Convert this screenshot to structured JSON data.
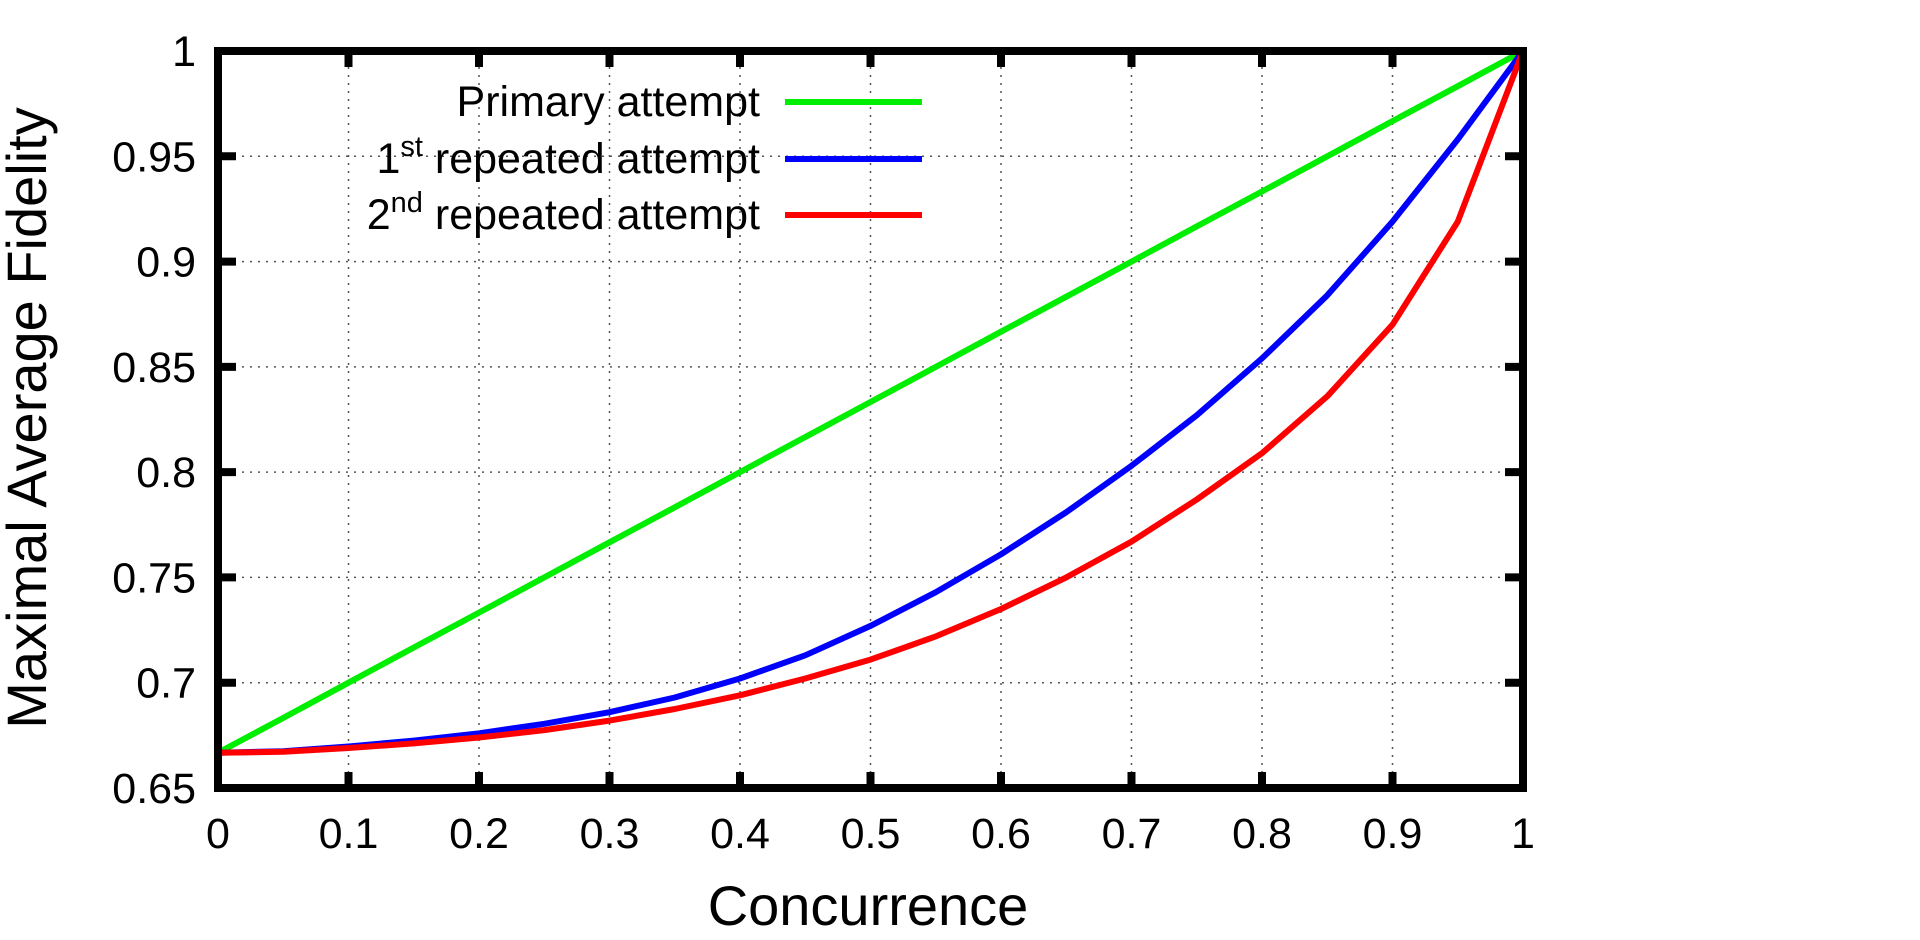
{
  "chart_data": {
    "type": "line",
    "title": "",
    "xlabel": "Concurrence",
    "ylabel": "Maximal Average Fidelity",
    "xlim": [
      0,
      1
    ],
    "ylim": [
      0.65,
      1
    ],
    "grid": true,
    "legend_position": "top-left",
    "xticks": [
      "0",
      "0.1",
      "0.2",
      "0.3",
      "0.4",
      "0.5",
      "0.6",
      "0.7",
      "0.8",
      "0.9",
      "1"
    ],
    "yticks": [
      "0.65",
      "0.7",
      "0.75",
      "0.8",
      "0.85",
      "0.9",
      "0.95",
      "1"
    ],
    "x": [
      0,
      0.05,
      0.1,
      0.15,
      0.2,
      0.25,
      0.3,
      0.35,
      0.4,
      0.45,
      0.5,
      0.55,
      0.6,
      0.65,
      0.7,
      0.75,
      0.8,
      0.85,
      0.9,
      0.95,
      1
    ],
    "series": [
      {
        "name": "Primary attempt",
        "legend_main": "Primary attempt",
        "legend_prefix": "",
        "legend_sup": "",
        "color": "#00ee00",
        "values": [
          0.6667,
          0.6833,
          0.7,
          0.7167,
          0.7333,
          0.75,
          0.7667,
          0.7833,
          0.8,
          0.8167,
          0.8333,
          0.85,
          0.8667,
          0.8833,
          0.9,
          0.9167,
          0.9333,
          0.95,
          0.9667,
          0.9833,
          1.0
        ]
      },
      {
        "name": "1st repeated attempt",
        "legend_main": " repeated attempt",
        "legend_prefix": "1",
        "legend_sup": "st",
        "color": "#0000ff",
        "values": [
          0.6667,
          0.6675,
          0.6697,
          0.6725,
          0.676,
          0.6805,
          0.686,
          0.693,
          0.702,
          0.713,
          0.727,
          0.743,
          0.761,
          0.781,
          0.803,
          0.827,
          0.854,
          0.884,
          0.919,
          0.958,
          1.0
        ]
      },
      {
        "name": "2nd repeated attempt",
        "legend_main": " repeated attempt",
        "legend_prefix": "2",
        "legend_sup": "nd",
        "color": "#ff0000",
        "values": [
          0.6667,
          0.6672,
          0.669,
          0.6712,
          0.674,
          0.6775,
          0.682,
          0.6875,
          0.694,
          0.702,
          0.711,
          0.722,
          0.735,
          0.75,
          0.767,
          0.787,
          0.809,
          0.836,
          0.87,
          0.919,
          1.0
        ]
      }
    ]
  }
}
